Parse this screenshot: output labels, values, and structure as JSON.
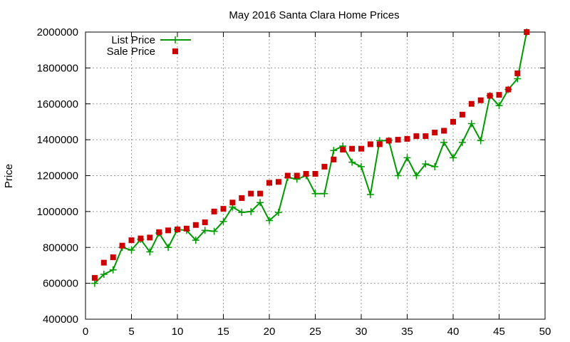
{
  "chart_data": {
    "type": "line",
    "title": "May 2016 Santa Clara Home Prices",
    "xlabel": "",
    "ylabel": "Price",
    "xlim": [
      0,
      50
    ],
    "ylim": [
      400000,
      2000000
    ],
    "x_ticks": [
      0,
      5,
      10,
      15,
      20,
      25,
      30,
      35,
      40,
      45,
      50
    ],
    "y_ticks": [
      400000,
      600000,
      800000,
      1000000,
      1200000,
      1400000,
      1600000,
      1800000,
      2000000
    ],
    "x_tick_labels": [
      "0",
      "5",
      "10",
      "15",
      "20",
      "25",
      "30",
      "35",
      "40",
      "45",
      "50"
    ],
    "y_tick_labels": [
      "400000",
      "600000",
      "800000",
      "1000000",
      "1200000",
      "1400000",
      "1600000",
      "1800000",
      "2000000"
    ],
    "grid": true,
    "legend_position": "top-left",
    "x": [
      1,
      2,
      3,
      4,
      5,
      6,
      7,
      8,
      9,
      10,
      11,
      12,
      13,
      14,
      15,
      16,
      17,
      18,
      19,
      20,
      21,
      22,
      23,
      24,
      25,
      26,
      27,
      28,
      29,
      30,
      31,
      32,
      33,
      34,
      35,
      36,
      37,
      38,
      39,
      40,
      41,
      42,
      43,
      44,
      45,
      46,
      47,
      48
    ],
    "series": [
      {
        "name": "List Price",
        "style": "line-points",
        "color": "#009900",
        "values": [
          600000,
          650000,
          675000,
          800000,
          785000,
          845000,
          775000,
          880000,
          800000,
          900000,
          895000,
          840000,
          895000,
          890000,
          945000,
          1025000,
          995000,
          1000000,
          1050000,
          950000,
          995000,
          1190000,
          1180000,
          1200000,
          1100000,
          1100000,
          1340000,
          1365000,
          1275000,
          1250000,
          1095000,
          1395000,
          1395000,
          1200000,
          1300000,
          1200000,
          1265000,
          1250000,
          1385000,
          1300000,
          1385000,
          1490000,
          1395000,
          1645000,
          1590000,
          1680000,
          1740000,
          2000000
        ]
      },
      {
        "name": "Sale Price",
        "style": "points",
        "color": "#cc0000",
        "values": [
          630000,
          715000,
          745000,
          810000,
          840000,
          850000,
          855000,
          885000,
          895000,
          900000,
          905000,
          925000,
          940000,
          1000000,
          1015000,
          1050000,
          1075000,
          1100000,
          1100000,
          1160000,
          1165000,
          1200000,
          1200000,
          1210000,
          1210000,
          1250000,
          1290000,
          1345000,
          1350000,
          1350000,
          1375000,
          1375000,
          1395000,
          1400000,
          1405000,
          1420000,
          1420000,
          1440000,
          1450000,
          1500000,
          1540000,
          1600000,
          1620000,
          1645000,
          1650000,
          1680000,
          1770000,
          2000000
        ]
      }
    ]
  }
}
